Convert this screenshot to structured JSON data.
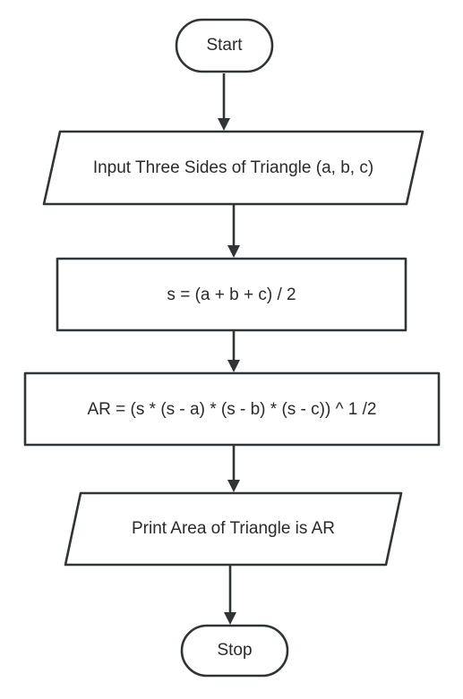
{
  "flowchart": {
    "nodes": [
      {
        "id": "start",
        "shape": "terminator",
        "label": "Start"
      },
      {
        "id": "input",
        "shape": "parallelogram",
        "label": "Input Three Sides of Triangle (a, b, c)"
      },
      {
        "id": "semi-perimeter",
        "shape": "rectangle",
        "label": "s = (a + b + c) / 2"
      },
      {
        "id": "area",
        "shape": "rectangle",
        "label": "AR = (s * (s - a) * (s - b) * (s - c)) ^ 1 /2"
      },
      {
        "id": "print",
        "shape": "parallelogram",
        "label": "Print Area of Triangle is AR"
      },
      {
        "id": "stop",
        "shape": "terminator",
        "label": "Stop"
      }
    ],
    "edges": [
      {
        "from": "start",
        "to": "input"
      },
      {
        "from": "input",
        "to": "semi-perimeter"
      },
      {
        "from": "semi-perimeter",
        "to": "area"
      },
      {
        "from": "area",
        "to": "print"
      },
      {
        "from": "print",
        "to": "stop"
      }
    ],
    "colors": {
      "stroke": "#2f3436",
      "fill": "#ffffff",
      "text": "#2a2a2a"
    }
  }
}
